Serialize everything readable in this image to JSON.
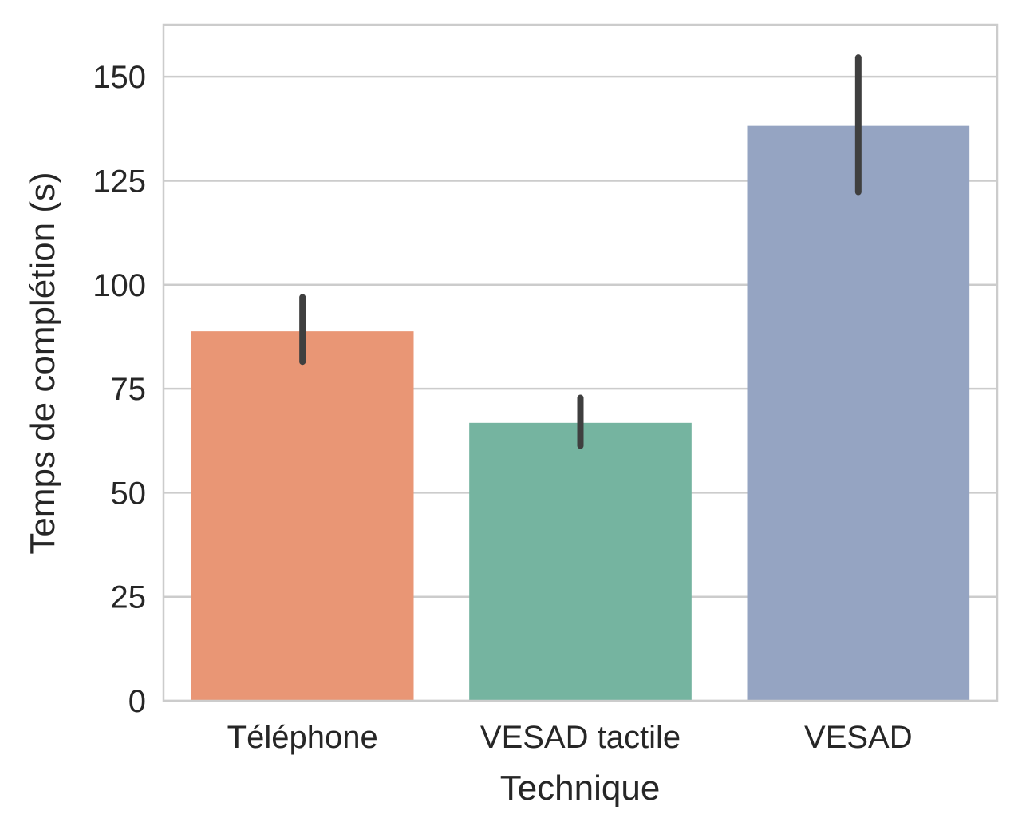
{
  "chart_data": {
    "type": "bar",
    "title": "",
    "xlabel": "Technique",
    "ylabel": "Temps de complétion (s)",
    "categories": [
      "Téléphone",
      "VESAD tactile",
      "VESAD"
    ],
    "values": [
      88.8,
      66.8,
      138.2
    ],
    "error_bars": [
      {
        "low": 81.5,
        "high": 97.0
      },
      {
        "low": 61.3,
        "high": 72.8
      },
      {
        "low": 122.3,
        "high": 154.6
      }
    ],
    "colors": [
      "#e99675",
      "#75b4a0",
      "#95a4c2"
    ],
    "error_bar_color": "#3f3f3f",
    "ylim": [
      0,
      162.5
    ],
    "yticks": [
      "0",
      "25",
      "50",
      "75",
      "100",
      "125",
      "150"
    ],
    "ytick_values": [
      0,
      25,
      50,
      75,
      100,
      125,
      150
    ],
    "grid": "horizontal",
    "grid_color": "#cccccc",
    "frame_color": "#cccccc",
    "legend": "none"
  }
}
